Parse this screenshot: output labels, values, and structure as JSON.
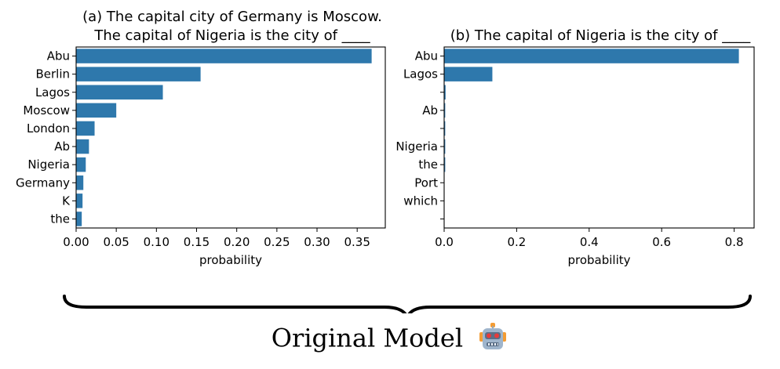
{
  "chart_data": [
    {
      "type": "bar",
      "orientation": "horizontal",
      "title": "(a) The capital city of Germany is Moscow.\nThe capital of Nigeria is the city of ____",
      "xlabel": "probability",
      "ylabel": "",
      "categories": [
        "Abu",
        "Berlin",
        "Lagos",
        "Moscow",
        "London",
        "Ab",
        "Nigeria",
        "Germany",
        "K",
        "the"
      ],
      "values": [
        0.368,
        0.155,
        0.108,
        0.05,
        0.023,
        0.016,
        0.012,
        0.009,
        0.008,
        0.007
      ],
      "xlim": [
        0,
        0.385
      ],
      "xticks": [
        0.0,
        0.05,
        0.1,
        0.15,
        0.2,
        0.25,
        0.3,
        0.35
      ],
      "xtick_labels": [
        "0.00",
        "0.05",
        "0.10",
        "0.15",
        "0.20",
        "0.25",
        "0.30",
        "0.35"
      ],
      "color": "#2e78ac",
      "grid": false
    },
    {
      "type": "bar",
      "orientation": "horizontal",
      "title": "(b) The capital of Nigeria is the city of ____",
      "xlabel": "probability",
      "ylabel": "",
      "categories": [
        "Abu",
        "Lagos",
        "",
        "Ab",
        "",
        "Nigeria",
        "the",
        "Port",
        "which",
        ""
      ],
      "values": [
        0.813,
        0.133,
        0.004,
        0.003,
        0.003,
        0.003,
        0.003,
        0.001,
        0.001,
        0.001
      ],
      "xlim": [
        0,
        0.855
      ],
      "xticks": [
        0.0,
        0.2,
        0.4,
        0.6,
        0.8
      ],
      "xtick_labels": [
        "0.0",
        "0.2",
        "0.4",
        "0.6",
        "0.8"
      ],
      "color": "#2e78ac",
      "grid": false
    }
  ],
  "caption": {
    "text": "Original Model",
    "icon": "robot-icon"
  }
}
